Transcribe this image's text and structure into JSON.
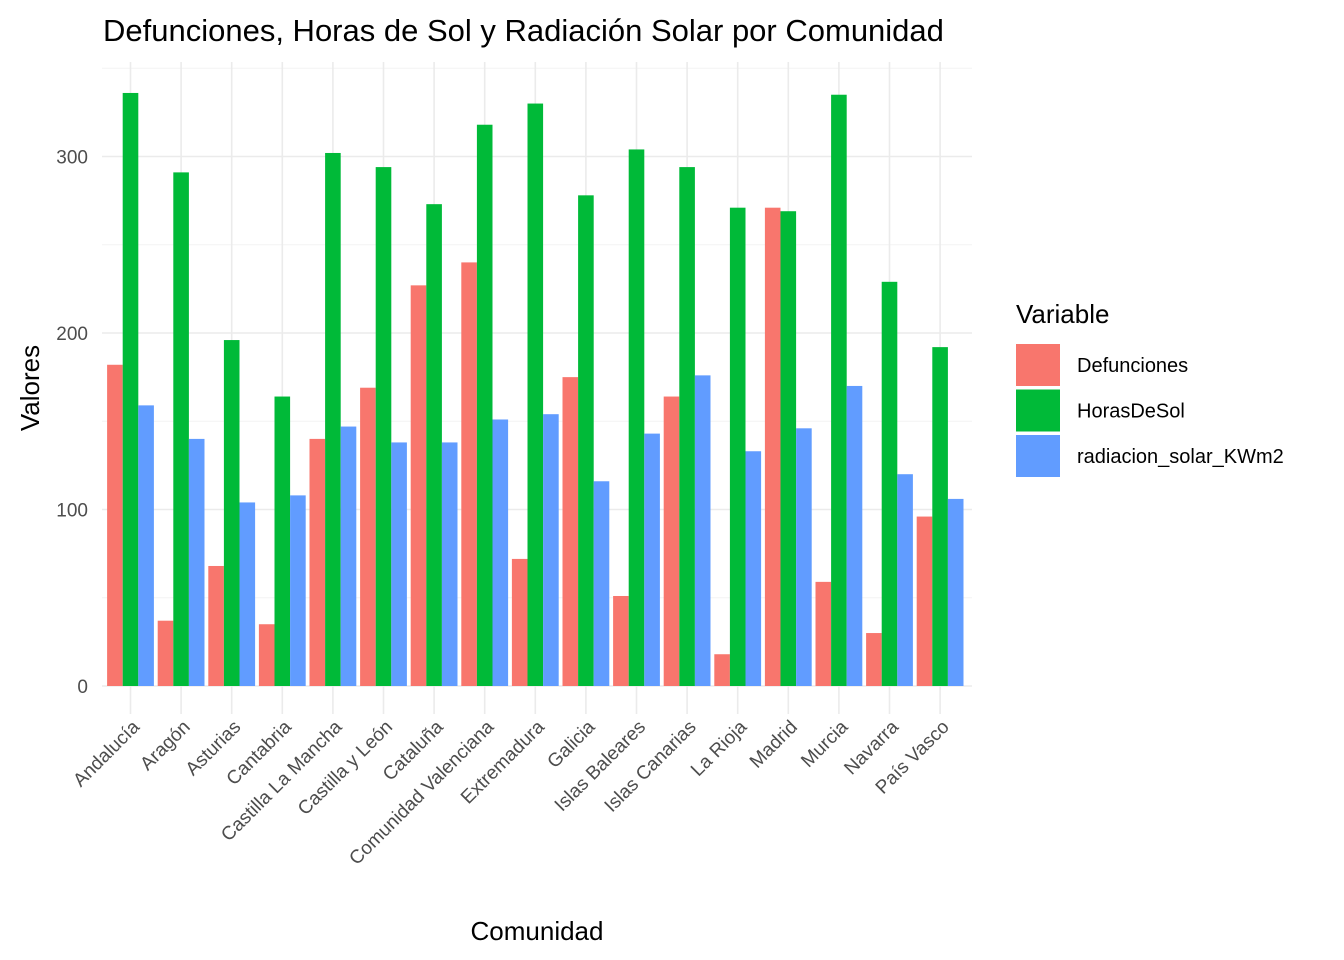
{
  "chart_data": {
    "type": "bar",
    "title": "Defunciones, Horas de Sol y Radiación Solar por Comunidad",
    "xlabel": "Comunidad",
    "ylabel": "Valores",
    "ylim": [
      0,
      350
    ],
    "yticks": [
      0,
      100,
      200,
      300
    ],
    "grid": true,
    "legend": {
      "title": "Variable",
      "position": "right"
    },
    "categories": [
      "Andalucía",
      "Aragón",
      "Asturias",
      "Cantabria",
      "Castilla La Mancha",
      "Castilla y León",
      "Cataluña",
      "Comunidad Valenciana",
      "Extremadura",
      "Galicia",
      "Islas Baleares",
      "Islas Canarias",
      "La Rioja",
      "Madrid",
      "Murcia",
      "Navarra",
      "País Vasco"
    ],
    "series": [
      {
        "name": "Defunciones",
        "color": "#F8766D",
        "values": [
          182,
          37,
          68,
          35,
          140,
          169,
          227,
          240,
          72,
          175,
          51,
          164,
          18,
          271,
          59,
          30,
          96
        ]
      },
      {
        "name": "HorasDeSol",
        "color": "#00BA38",
        "values": [
          336,
          291,
          196,
          164,
          302,
          294,
          273,
          318,
          330,
          278,
          304,
          294,
          271,
          269,
          335,
          229,
          192
        ]
      },
      {
        "name": "radiacion_solar_KWm2",
        "color": "#619CFF",
        "values": [
          159,
          140,
          104,
          108,
          147,
          138,
          138,
          151,
          154,
          116,
          143,
          176,
          133,
          146,
          170,
          120,
          106
        ]
      }
    ]
  }
}
